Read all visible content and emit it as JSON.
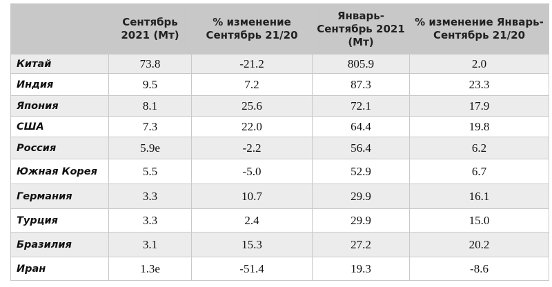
{
  "table": {
    "headers": [
      "Сентябрь 2021 (Мт)",
      "% изменение Сентябрь 21/20",
      "Январь-Сентябрь 2021 (Мт)",
      "% изменение Январь-Сентябрь 21/20"
    ],
    "rows": [
      [
        "Китай",
        "73.8",
        "-21.2",
        "805.9",
        "2.0"
      ],
      [
        "Индия",
        "9.5",
        "7.2",
        "87.3",
        "23.3"
      ],
      [
        "Япония",
        "8.1",
        "25.6",
        "72.1",
        "17.9"
      ],
      [
        "США",
        "7.3",
        "22.0",
        "64.4",
        "19.8"
      ],
      [
        "Россия",
        "5.9e",
        "-2.2",
        "56.4",
        "6.2"
      ],
      [
        "Южная Корея",
        "5.5",
        "-5.0",
        "52.9",
        "6.7"
      ],
      [
        "Германия",
        "3.3",
        "10.7",
        "29.9",
        "16.1"
      ],
      [
        "Турция",
        "3.3",
        "2.4",
        "29.9",
        "15.0"
      ],
      [
        "Бразилия",
        "3.1",
        "15.3",
        "27.2",
        "20.2"
      ],
      [
        "Иран",
        "1.3e",
        "-51.4",
        "19.3",
        "-8.6"
      ]
    ]
  }
}
